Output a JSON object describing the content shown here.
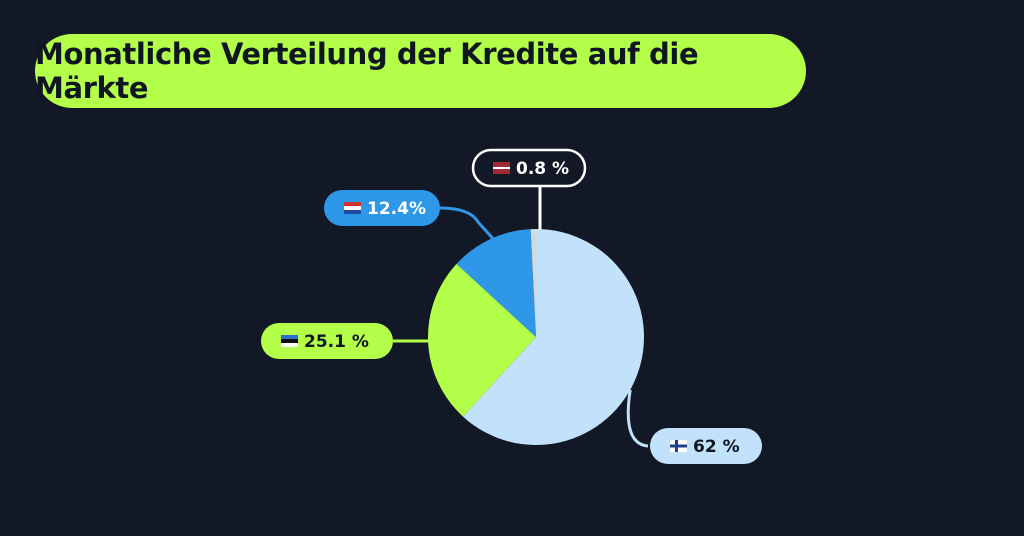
{
  "title": "Monatliche Verteilung der Kredite auf die Märkte",
  "colors": {
    "background": "#121826",
    "title_pill": "#b4ff4a",
    "title_text": "#0f1622"
  },
  "chart_data": {
    "type": "pie",
    "title": "Monatliche Verteilung der Kredite auf die Märkte",
    "slices": [
      {
        "label": "62 %",
        "value": 62,
        "flag": "finland-flag-icon",
        "color": "#c2e1fa",
        "label_bg": "#c2e1fa",
        "label_fg": "#0f1622",
        "label_border": "",
        "callout": "bottom-right"
      },
      {
        "label": "25.1 %",
        "value": 25.1,
        "flag": "estonia-flag-icon",
        "color": "#b4ff4a",
        "label_bg": "#b4ff4a",
        "label_fg": "#0f1622",
        "label_border": "",
        "callout": "left"
      },
      {
        "label": "12.4%",
        "value": 12.4,
        "flag": "netherlands-flag-icon",
        "color": "#2f97e8",
        "label_bg": "#2f97e8",
        "label_fg": "#ffffff",
        "label_border": "",
        "callout": "top-left"
      },
      {
        "label": "0.8 %",
        "value": 0.8,
        "flag": "latvia-flag-icon",
        "color": "#d8d8d8",
        "label_bg": "#121826",
        "label_fg": "#ffffff",
        "label_border": "#ffffff",
        "callout": "top"
      }
    ]
  }
}
